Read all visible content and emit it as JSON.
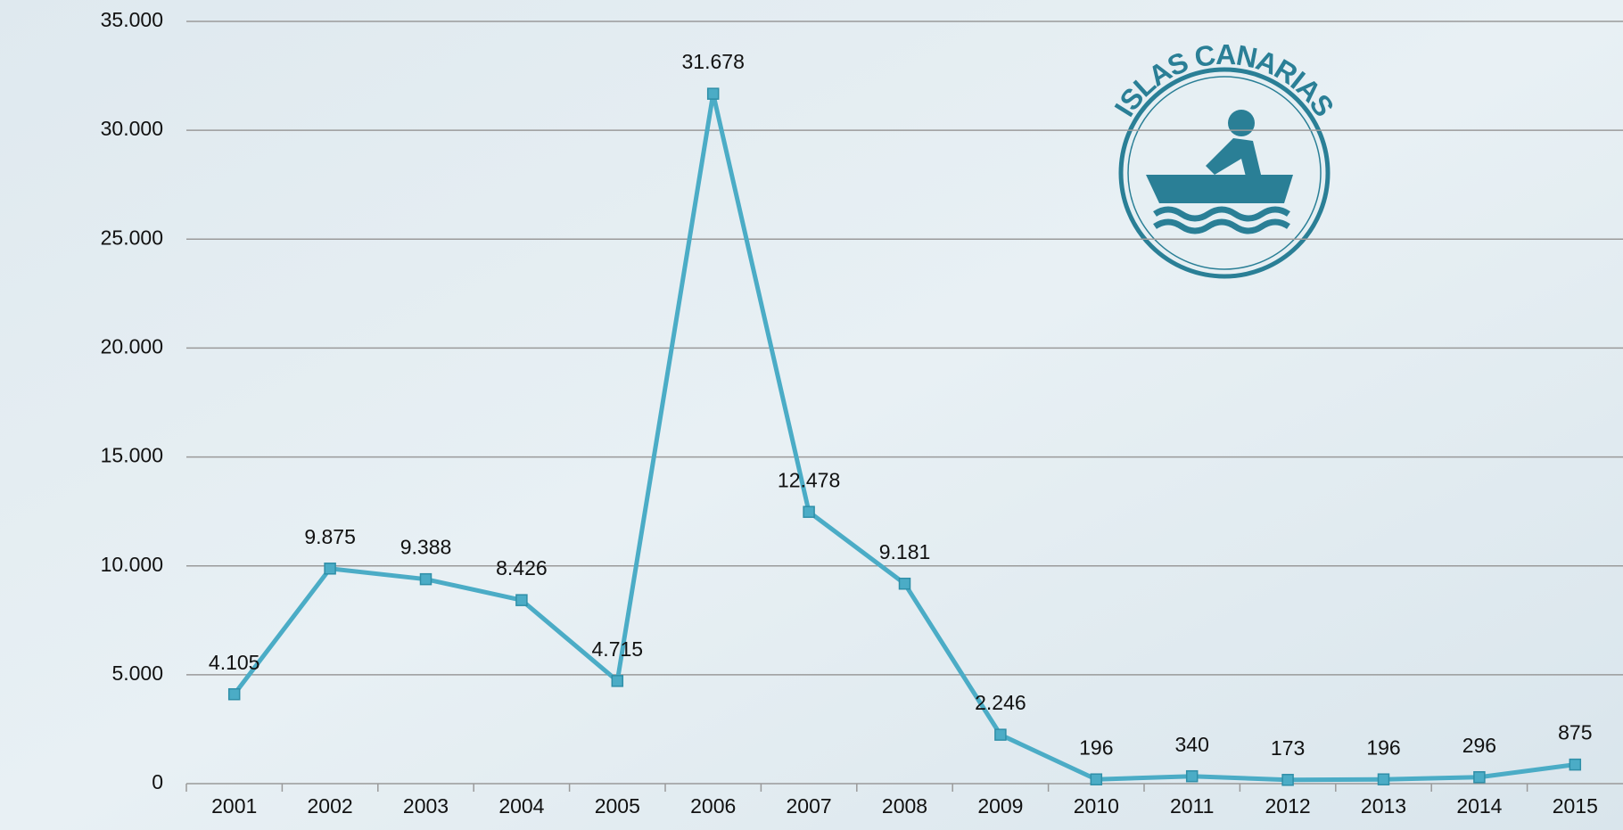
{
  "chart_data": {
    "type": "line",
    "categories": [
      "2001",
      "2002",
      "2003",
      "2004",
      "2005",
      "2006",
      "2007",
      "2008",
      "2009",
      "2010",
      "2011",
      "2012",
      "2013",
      "2014",
      "2015"
    ],
    "series": [
      {
        "color": "#4bacc6",
        "values": [
          4105,
          9875,
          9388,
          8426,
          4715,
          31678,
          12478,
          9181,
          2246,
          196,
          340,
          173,
          196,
          296,
          875
        ],
        "value_labels": [
          "4.105",
          "9.875",
          "9.388",
          "8.426",
          "4.715",
          "31.678",
          "12.478",
          "9.181",
          "2.246",
          "196",
          "340",
          "173",
          "196",
          "296",
          "875"
        ]
      }
    ],
    "ylim": [
      0,
      35000
    ],
    "yticks": [
      0,
      {
        "value": 5000,
        "label": "5.000"
      },
      {
        "value": 10000,
        "label": "10.000"
      },
      {
        "value": 15000,
        "label": "15.000"
      },
      {
        "value": 20000,
        "label": "20.000"
      },
      {
        "value": 25000,
        "label": "25.000"
      },
      {
        "value": 30000,
        "label": "30.000"
      },
      {
        "value": 35000,
        "label": "35.000"
      }
    ],
    "grid": true
  },
  "logo": {
    "text": "ISLAS CANARIAS"
  }
}
